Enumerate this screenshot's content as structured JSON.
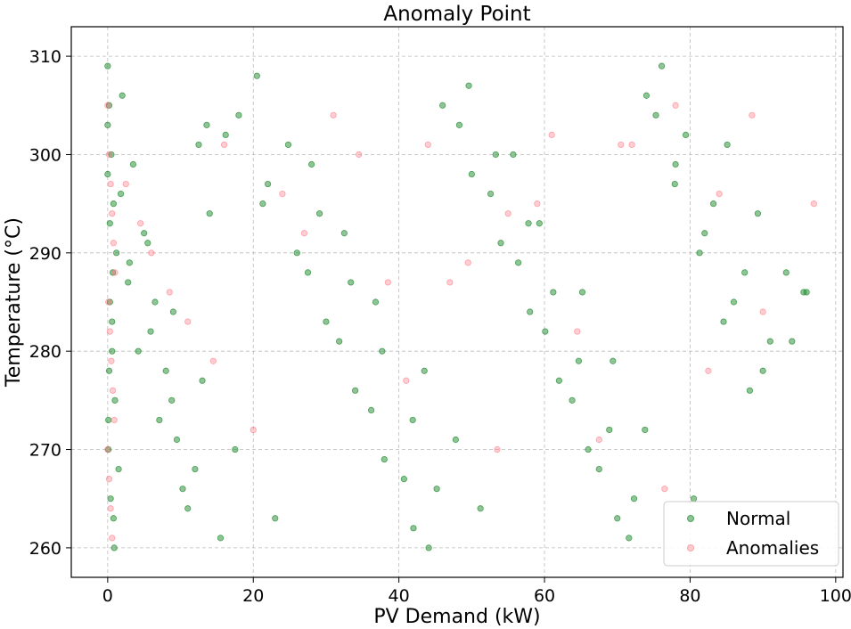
{
  "chart_data": {
    "type": "scatter",
    "title": "Anomaly Point",
    "xlabel": "PV Demand (kW)",
    "ylabel": "Temperature (°C)",
    "xlim": [
      -5,
      101
    ],
    "ylim": [
      257,
      313
    ],
    "xticks": [
      0,
      20,
      40,
      60,
      80,
      100
    ],
    "yticks": [
      260,
      270,
      280,
      290,
      300,
      310
    ],
    "grid": true,
    "legend_position": "lower-right",
    "series": [
      {
        "name": "Normal",
        "color": "#1f8a2e",
        "x": [
          0.0,
          0.2,
          0.5,
          0.8,
          1.2,
          0.3,
          0.6,
          1.0,
          0.1,
          0.4,
          0.9,
          0.0,
          0.7,
          0.2,
          1.5,
          0.0,
          0.3,
          0.6,
          0.1,
          0.8,
          2.0,
          3.5,
          5.0,
          6.5,
          8.0,
          9.5,
          11.0,
          12.5,
          14.0,
          2.8,
          4.2,
          7.1,
          10.3,
          13.6,
          1.8,
          3.0,
          5.9,
          8.8,
          12.0,
          15.5,
          18.0,
          22.0,
          26.0,
          30.0,
          34.0,
          38.0,
          42.0,
          46.0,
          50.0,
          54.0,
          58.0,
          62.0,
          66.0,
          70.0,
          74.0,
          78.0,
          82.0,
          86.0,
          90.0,
          94.0,
          20.5,
          24.8,
          29.1,
          33.4,
          37.7,
          41.9,
          45.2,
          49.6,
          53.3,
          57.8,
          61.2,
          64.7,
          68.9,
          72.3,
          76.1,
          79.4,
          83.2,
          87.5,
          91.0,
          95.6,
          16.2,
          21.3,
          27.5,
          31.8,
          36.2,
          40.7,
          44.1,
          48.3,
          52.6,
          56.4,
          60.1,
          63.8,
          67.5,
          71.6,
          75.3,
          77.9,
          81.3,
          84.6,
          88.2,
          96.0,
          5.5,
          9.0,
          13.0,
          17.5,
          23.0,
          28.0,
          32.5,
          36.8,
          43.5,
          47.8,
          51.2,
          55.7,
          59.3,
          65.2,
          69.4,
          73.8,
          80.5,
          85.1,
          89.3,
          93.2
        ],
        "y": [
          309,
          305,
          300,
          295,
          290,
          285,
          280,
          275,
          270,
          265,
          260,
          298,
          288,
          278,
          268,
          303,
          293,
          283,
          273,
          263,
          306,
          299,
          292,
          285,
          278,
          271,
          264,
          301,
          294,
          287,
          280,
          273,
          266,
          303,
          296,
          289,
          282,
          275,
          268,
          261,
          304,
          297,
          290,
          283,
          276,
          269,
          262,
          305,
          298,
          291,
          284,
          277,
          270,
          263,
          306,
          299,
          292,
          285,
          278,
          281,
          308,
          301,
          294,
          287,
          280,
          273,
          266,
          307,
          300,
          293,
          286,
          279,
          272,
          265,
          309,
          302,
          295,
          288,
          281,
          286,
          302,
          295,
          288,
          281,
          274,
          267,
          260,
          303,
          296,
          289,
          282,
          275,
          268,
          261,
          304,
          297,
          290,
          283,
          276,
          286,
          291,
          284,
          277,
          270,
          263,
          299,
          292,
          285,
          278,
          271,
          264,
          300,
          293,
          286,
          279,
          272,
          265,
          301,
          294,
          288
        ]
      },
      {
        "name": "Anomalies",
        "color": "#ff6f7d",
        "x": [
          0.0,
          0.2,
          0.4,
          0.6,
          0.8,
          1.0,
          0.1,
          0.3,
          0.5,
          0.7,
          0.9,
          0.0,
          0.2,
          0.4,
          0.6,
          2.5,
          6.0,
          11.0,
          16.0,
          24.0,
          31.0,
          38.5,
          44.0,
          49.5,
          55.0,
          61.0,
          67.5,
          72.0,
          78.0,
          84.0,
          90.0,
          97.0,
          4.5,
          8.5,
          14.5,
          20.0,
          27.0,
          34.5,
          41.0,
          47.0,
          53.5,
          59.0,
          64.5,
          70.5,
          76.5,
          82.5,
          88.5
        ],
        "y": [
          305,
          300,
          297,
          294,
          291,
          288,
          285,
          282,
          279,
          276,
          273,
          270,
          267,
          264,
          261,
          297,
          290,
          283,
          301,
          296,
          304,
          287,
          301,
          289,
          294,
          302,
          271,
          301,
          305,
          296,
          284,
          295,
          293,
          286,
          279,
          272,
          292,
          300,
          277,
          287,
          270,
          295,
          282,
          301,
          266,
          278,
          304
        ]
      }
    ]
  }
}
